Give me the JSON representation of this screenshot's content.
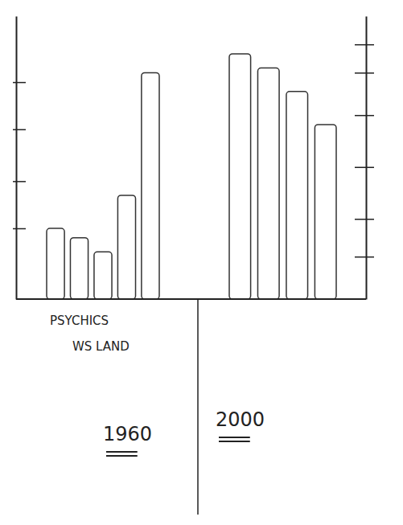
{
  "chart_data": {
    "type": "bar",
    "groups": [
      {
        "label": "1960",
        "values": [
          1.5,
          1.3,
          1.0,
          2.2,
          4.8
        ]
      },
      {
        "label": "2000",
        "values": [
          5.2,
          4.9,
          4.4,
          3.7
        ]
      }
    ],
    "annotations": [
      "PSYCHICS",
      "WS LAND"
    ],
    "color": "#ffffff",
    "ylim": [
      0,
      6
    ],
    "yticks": [
      1.5,
      2.5,
      3.6,
      4.6
    ],
    "y2lim": [
      0,
      6
    ],
    "y2ticks": [
      0.9,
      1.7,
      2.8,
      3.9,
      4.8,
      5.4
    ],
    "tick_labels": false,
    "grid": false
  }
}
